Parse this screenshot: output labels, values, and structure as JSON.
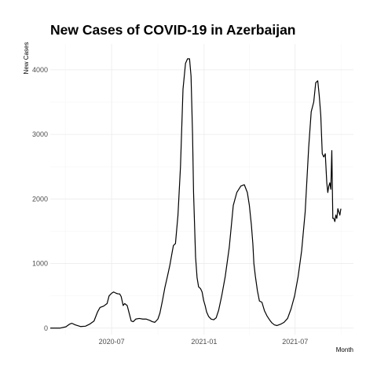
{
  "chart_data": {
    "type": "line",
    "title": "New Cases of COVID-19 in Azerbaijan",
    "xlabel": "Month",
    "ylabel": "New Cases",
    "xlim": [
      "2020-03-01",
      "2021-10-25"
    ],
    "ylim": [
      -100,
      4400
    ],
    "grid": true,
    "legend": "none",
    "x_ticks": [
      {
        "value": "2020-07-01",
        "label": "2020-07"
      },
      {
        "value": "2021-01-01",
        "label": "2021-01"
      },
      {
        "value": "2021-07-01",
        "label": "2021-07"
      }
    ],
    "y_ticks": [
      {
        "value": 0,
        "label": "0"
      },
      {
        "value": 1000,
        "label": "1000"
      },
      {
        "value": 2000,
        "label": "2000"
      },
      {
        "value": 3000,
        "label": "3000"
      },
      {
        "value": 4000,
        "label": "4000"
      }
    ],
    "series": [
      {
        "x": [
          "2020-03-01",
          "2020-03-20",
          "2020-04-01",
          "2020-04-08",
          "2020-04-13",
          "2020-04-20",
          "2020-04-30",
          "2020-05-10",
          "2020-05-18",
          "2020-05-27",
          "2020-06-03",
          "2020-06-08",
          "2020-06-15",
          "2020-06-22",
          "2020-06-26",
          "2020-07-01",
          "2020-07-05",
          "2020-07-10",
          "2020-07-14",
          "2020-07-17",
          "2020-07-20",
          "2020-07-24",
          "2020-07-27",
          "2020-08-01",
          "2020-08-06",
          "2020-08-09",
          "2020-08-13",
          "2020-08-18",
          "2020-08-25",
          "2020-09-01",
          "2020-09-08",
          "2020-09-15",
          "2020-09-20",
          "2020-09-25",
          "2020-10-01",
          "2020-10-05",
          "2020-10-10",
          "2020-10-15",
          "2020-10-20",
          "2020-10-25",
          "2020-10-30",
          "2020-11-01",
          "2020-11-05",
          "2020-11-10",
          "2020-11-15",
          "2020-11-20",
          "2020-11-25",
          "2020-11-29",
          "2020-12-03",
          "2020-12-06",
          "2020-12-09",
          "2020-12-11",
          "2020-12-13",
          "2020-12-15",
          "2020-12-18",
          "2020-12-21",
          "2020-12-25",
          "2020-12-28",
          "2020-12-31",
          "2021-01-03",
          "2021-01-06",
          "2021-01-10",
          "2021-01-15",
          "2021-01-20",
          "2021-01-25",
          "2021-01-30",
          "2021-02-05",
          "2021-02-12",
          "2021-02-20",
          "2021-02-28",
          "2021-03-07",
          "2021-03-15",
          "2021-03-22",
          "2021-03-28",
          "2021-04-01",
          "2021-04-05",
          "2021-04-08",
          "2021-04-10",
          "2021-04-13",
          "2021-04-17",
          "2021-04-21",
          "2021-04-26",
          "2021-05-01",
          "2021-05-06",
          "2021-05-11",
          "2021-05-16",
          "2021-05-21",
          "2021-05-26",
          "2021-06-02",
          "2021-06-09",
          "2021-06-16",
          "2021-06-23",
          "2021-06-30",
          "2021-07-07",
          "2021-07-14",
          "2021-07-21",
          "2021-07-28",
          "2021-08-02",
          "2021-08-07",
          "2021-08-11",
          "2021-08-15",
          "2021-08-18",
          "2021-08-21",
          "2021-08-24",
          "2021-08-27",
          "2021-08-30",
          "2021-09-02",
          "2021-09-04",
          "2021-09-06",
          "2021-09-08",
          "2021-09-10",
          "2021-09-12",
          "2021-09-14",
          "2021-09-16",
          "2021-09-18",
          "2021-09-20",
          "2021-09-22",
          "2021-09-24",
          "2021-09-26",
          "2021-09-28",
          "2021-09-30"
        ],
        "y": [
          0,
          0,
          20,
          60,
          75,
          50,
          25,
          30,
          60,
          110,
          250,
          320,
          340,
          380,
          500,
          540,
          560,
          540,
          530,
          530,
          490,
          350,
          380,
          350,
          200,
          110,
          100,
          140,
          150,
          140,
          140,
          120,
          100,
          90,
          140,
          230,
          420,
          630,
          800,
          980,
          1200,
          1280,
          1310,
          1750,
          2500,
          3700,
          4100,
          4170,
          4170,
          3900,
          3000,
          2100,
          1600,
          1100,
          780,
          640,
          610,
          560,
          430,
          350,
          250,
          180,
          140,
          130,
          160,
          280,
          500,
          800,
          1250,
          1900,
          2100,
          2200,
          2220,
          2100,
          1900,
          1600,
          1300,
          1000,
          800,
          580,
          420,
          400,
          270,
          190,
          130,
          80,
          50,
          40,
          60,
          90,
          150,
          300,
          500,
          800,
          1200,
          1800,
          2800,
          3350,
          3500,
          3800,
          3830,
          3600,
          3300,
          2700,
          2650,
          2700,
          2250,
          2100,
          2200,
          2250,
          2150,
          2750,
          1700,
          1700,
          1650,
          1750,
          1700,
          1850,
          1800,
          1750,
          1850
        ]
      }
    ]
  }
}
